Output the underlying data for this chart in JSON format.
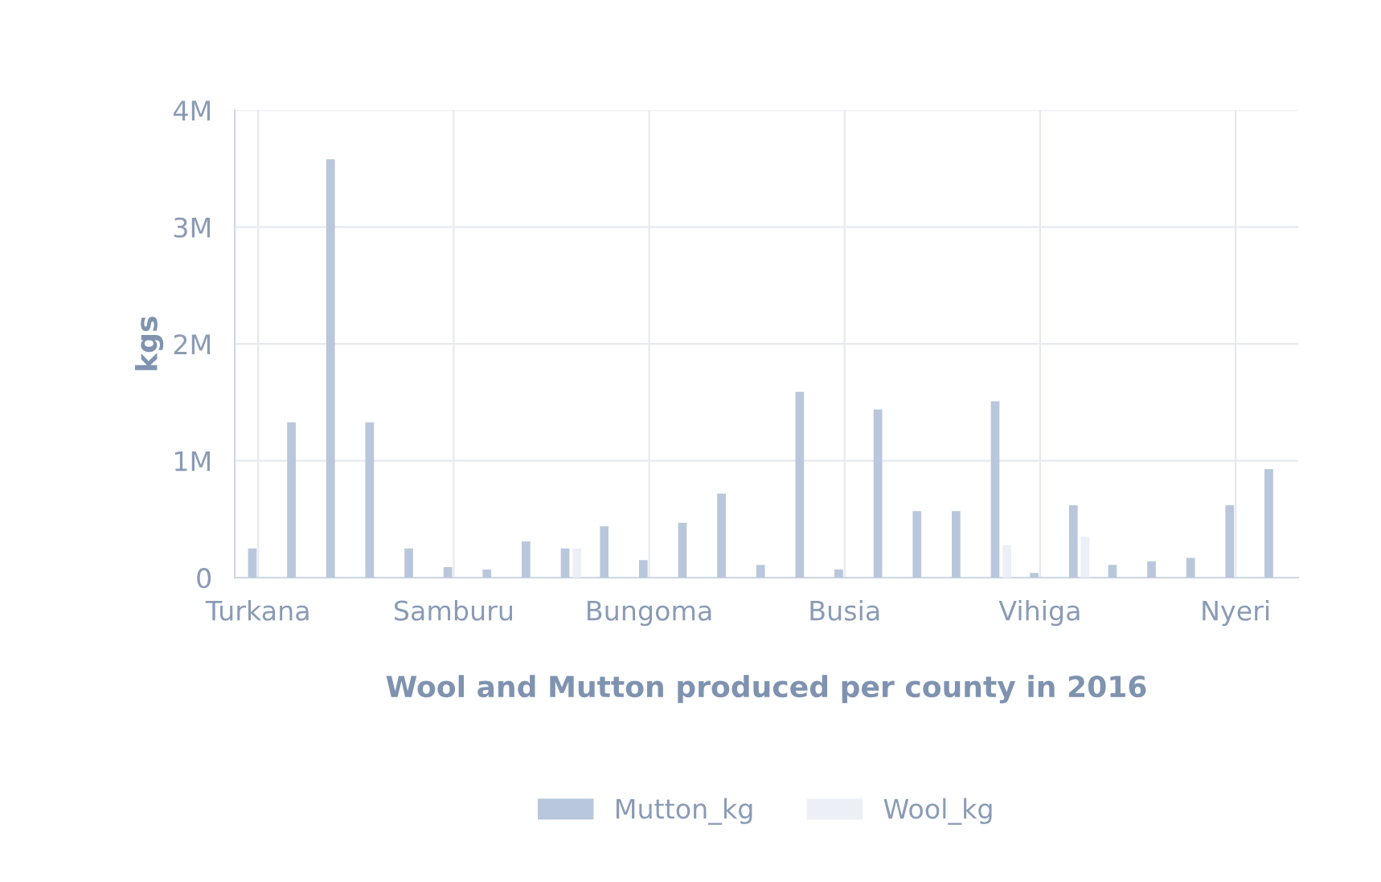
{
  "chart_data": {
    "type": "bar",
    "categories": [
      "Turkana",
      null,
      null,
      null,
      null,
      "Samburu",
      null,
      null,
      null,
      null,
      "Bungoma",
      null,
      null,
      null,
      null,
      "Busia",
      null,
      null,
      null,
      null,
      "Vihiga",
      null,
      null,
      null,
      null,
      "Nyeri",
      null
    ],
    "series": [
      {
        "name": "Mutton_kg",
        "color": "#b8c7dc",
        "values": [
          0.25,
          1.33,
          3.58,
          1.33,
          0.25,
          0.09,
          0.07,
          0.31,
          0.25,
          0.44,
          0.15,
          0.47,
          0.72,
          0.11,
          1.59,
          0.07,
          1.44,
          0.57,
          0.57,
          1.51,
          0.04,
          0.62,
          0.11,
          0.14,
          0.17,
          0.62,
          0.93
        ]
      },
      {
        "name": "Wool_kg",
        "color": "#eceff5",
        "values": [
          null,
          null,
          null,
          null,
          null,
          null,
          null,
          null,
          0.25,
          null,
          null,
          null,
          null,
          null,
          null,
          null,
          null,
          null,
          null,
          0.28,
          null,
          0.35,
          null,
          null,
          null,
          null,
          null
        ]
      }
    ],
    "xlabel": "Wool and Mutton produced per county in 2016",
    "ylabel": "kgs",
    "ylim": [
      0,
      4
    ],
    "yticks": [
      {
        "value": 0,
        "label": "0"
      },
      {
        "value": 1,
        "label": "1M"
      },
      {
        "value": 2,
        "label": "2M"
      },
      {
        "value": 3,
        "label": "3M"
      },
      {
        "value": 4,
        "label": "4M"
      }
    ],
    "grid": true,
    "legend": "bottom"
  }
}
